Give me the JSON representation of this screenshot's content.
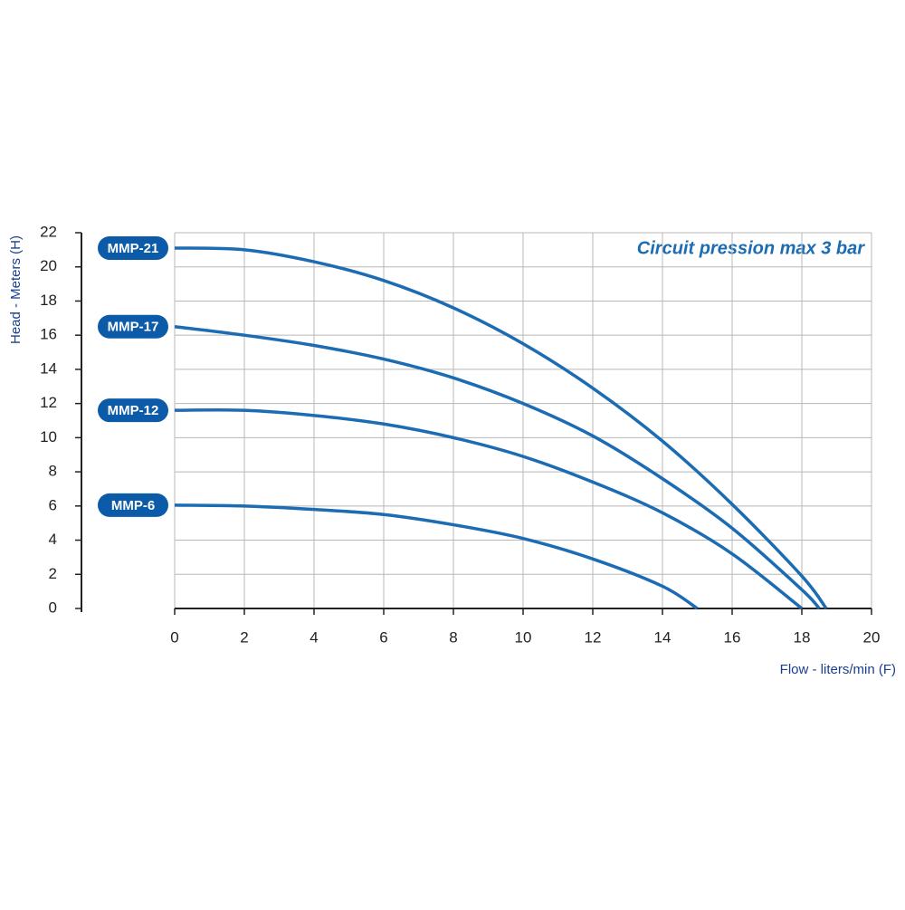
{
  "chart_data": {
    "type": "line",
    "annotation": "Circuit pression max 3 bar",
    "xlabel": "Flow - liters/min (F)",
    "ylabel": "Head - Meters (H)",
    "xlim": [
      0,
      20
    ],
    "xticks": [
      0,
      2,
      4,
      6,
      8,
      10,
      12,
      14,
      16,
      18,
      20
    ],
    "ylim": [
      0,
      22
    ],
    "yticks": [
      0,
      2,
      4,
      6,
      8,
      10,
      12,
      14,
      16,
      18,
      20,
      22
    ],
    "grid": true,
    "series": [
      {
        "name": "MMP-21",
        "color": "#1c6cb4",
        "x": [
          0,
          2,
          4,
          6,
          8,
          10,
          12,
          14,
          16,
          18,
          18.7
        ],
        "values": [
          21.1,
          21,
          20.3,
          19.2,
          17.6,
          15.5,
          12.9,
          9.8,
          6.1,
          1.9,
          0
        ]
      },
      {
        "name": "MMP-17",
        "color": "#1c6cb4",
        "x": [
          0,
          2,
          4,
          6,
          8,
          10,
          12,
          14,
          16,
          18,
          18.5
        ],
        "values": [
          16.5,
          16,
          15.4,
          14.6,
          13.5,
          12,
          10.1,
          7.6,
          4.7,
          1.1,
          0
        ]
      },
      {
        "name": "MMP-12",
        "color": "#1c6cb4",
        "x": [
          0,
          2,
          4,
          6,
          8,
          10,
          12,
          14,
          16,
          18
        ],
        "values": [
          11.6,
          11.6,
          11.3,
          10.8,
          10,
          8.9,
          7.4,
          5.6,
          3.2,
          0
        ]
      },
      {
        "name": "MMP-6",
        "color": "#1c6cb4",
        "x": [
          0,
          2,
          4,
          6,
          8,
          10,
          12,
          14,
          15
        ],
        "values": [
          6.05,
          6,
          5.8,
          5.5,
          4.9,
          4.1,
          2.9,
          1.3,
          0
        ]
      }
    ]
  }
}
